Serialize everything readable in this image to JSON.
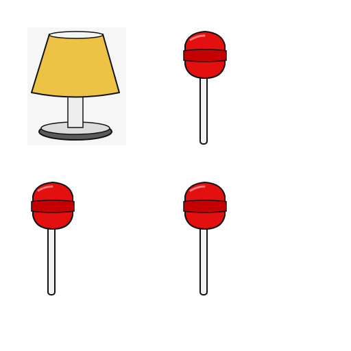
{
  "grid": {
    "tiles": [
      {
        "object": "lamp-icon",
        "row": 1,
        "column": 1
      },
      {
        "object": "lollipop-icon",
        "row": 1,
        "column": 2
      },
      {
        "object": "lollipop-icon",
        "row": 2,
        "column": 1
      },
      {
        "object": "lollipop-icon",
        "row": 2,
        "column": 2
      }
    ]
  },
  "colors": {
    "background": "#ffffff",
    "lamp_shade": "#ecc345",
    "lamp_shade_top": "#f4f4f4",
    "lamp_stem": "#ededed",
    "lamp_base": "#5a5a5a",
    "lamp_base_top": "#dcdcdc",
    "lamp_tile_bg": "#f6f6f6",
    "candy": "#e41010",
    "candy_band": "#c40000",
    "stick": "#f2f2f2",
    "outline": "#111111"
  }
}
